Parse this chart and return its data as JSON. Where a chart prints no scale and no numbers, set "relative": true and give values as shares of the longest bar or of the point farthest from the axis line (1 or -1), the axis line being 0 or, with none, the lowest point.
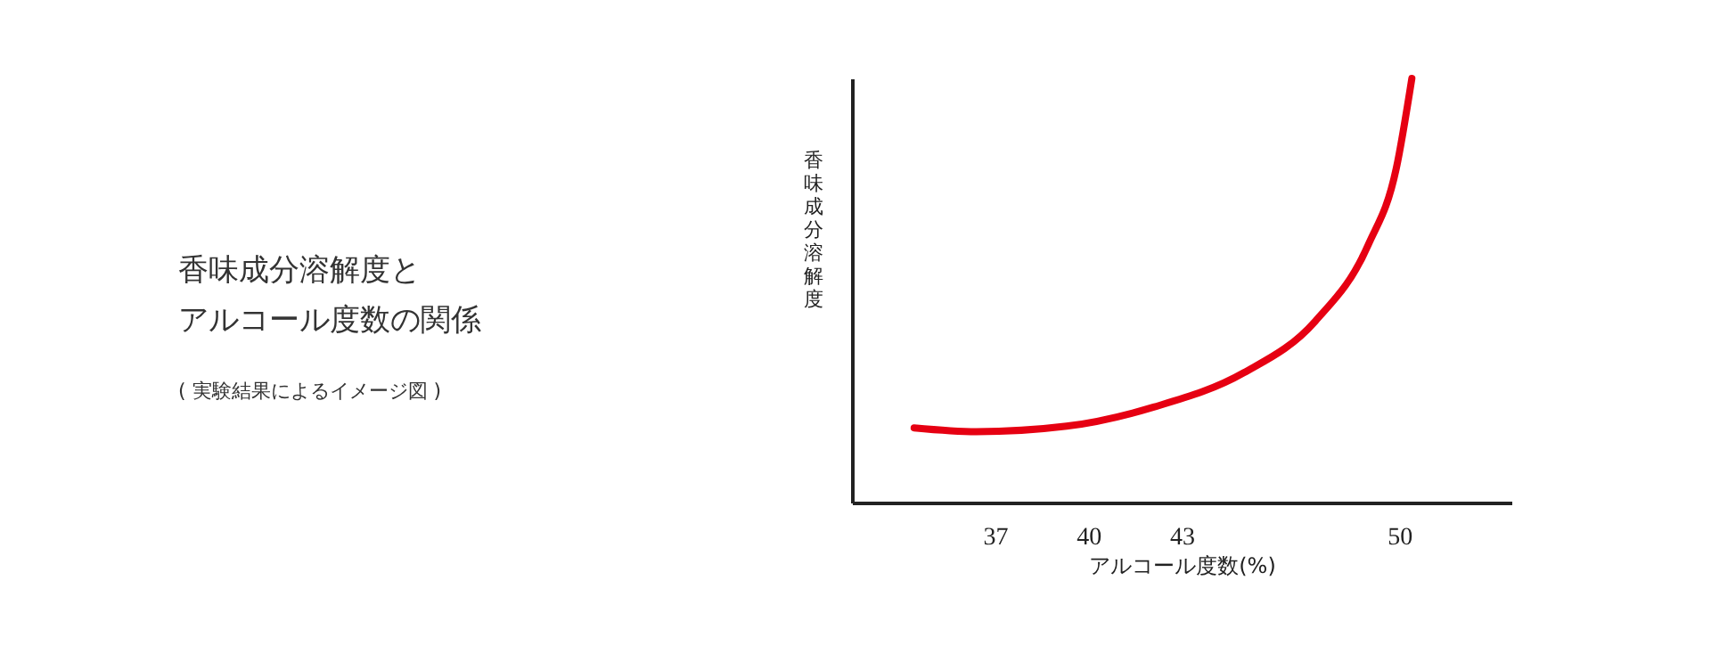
{
  "chart_data": {
    "type": "line",
    "title": "香味成分溶解度とアルコール度数の関係",
    "annotations": [
      "( 実験結果によるイメージ図 )"
    ],
    "xlabel": "アルコール度数(%)",
    "ylabel": "香味成分溶解度",
    "relative": true,
    "x": [
      34.4,
      36.4,
      39.3,
      42.1,
      45,
      47.3,
      49,
      49.9,
      50.4
    ],
    "xlim": [
      32.4,
      53.6
    ],
    "xticks": [
      37,
      40,
      43,
      50
    ],
    "grid": false,
    "legend": false,
    "series": [
      {
        "color": "#e60012",
        "values": [
          0.176,
          0.167,
          0.18,
          0.225,
          0.306,
          0.428,
          0.608,
          0.788,
          1.0
        ]
      }
    ]
  }
}
